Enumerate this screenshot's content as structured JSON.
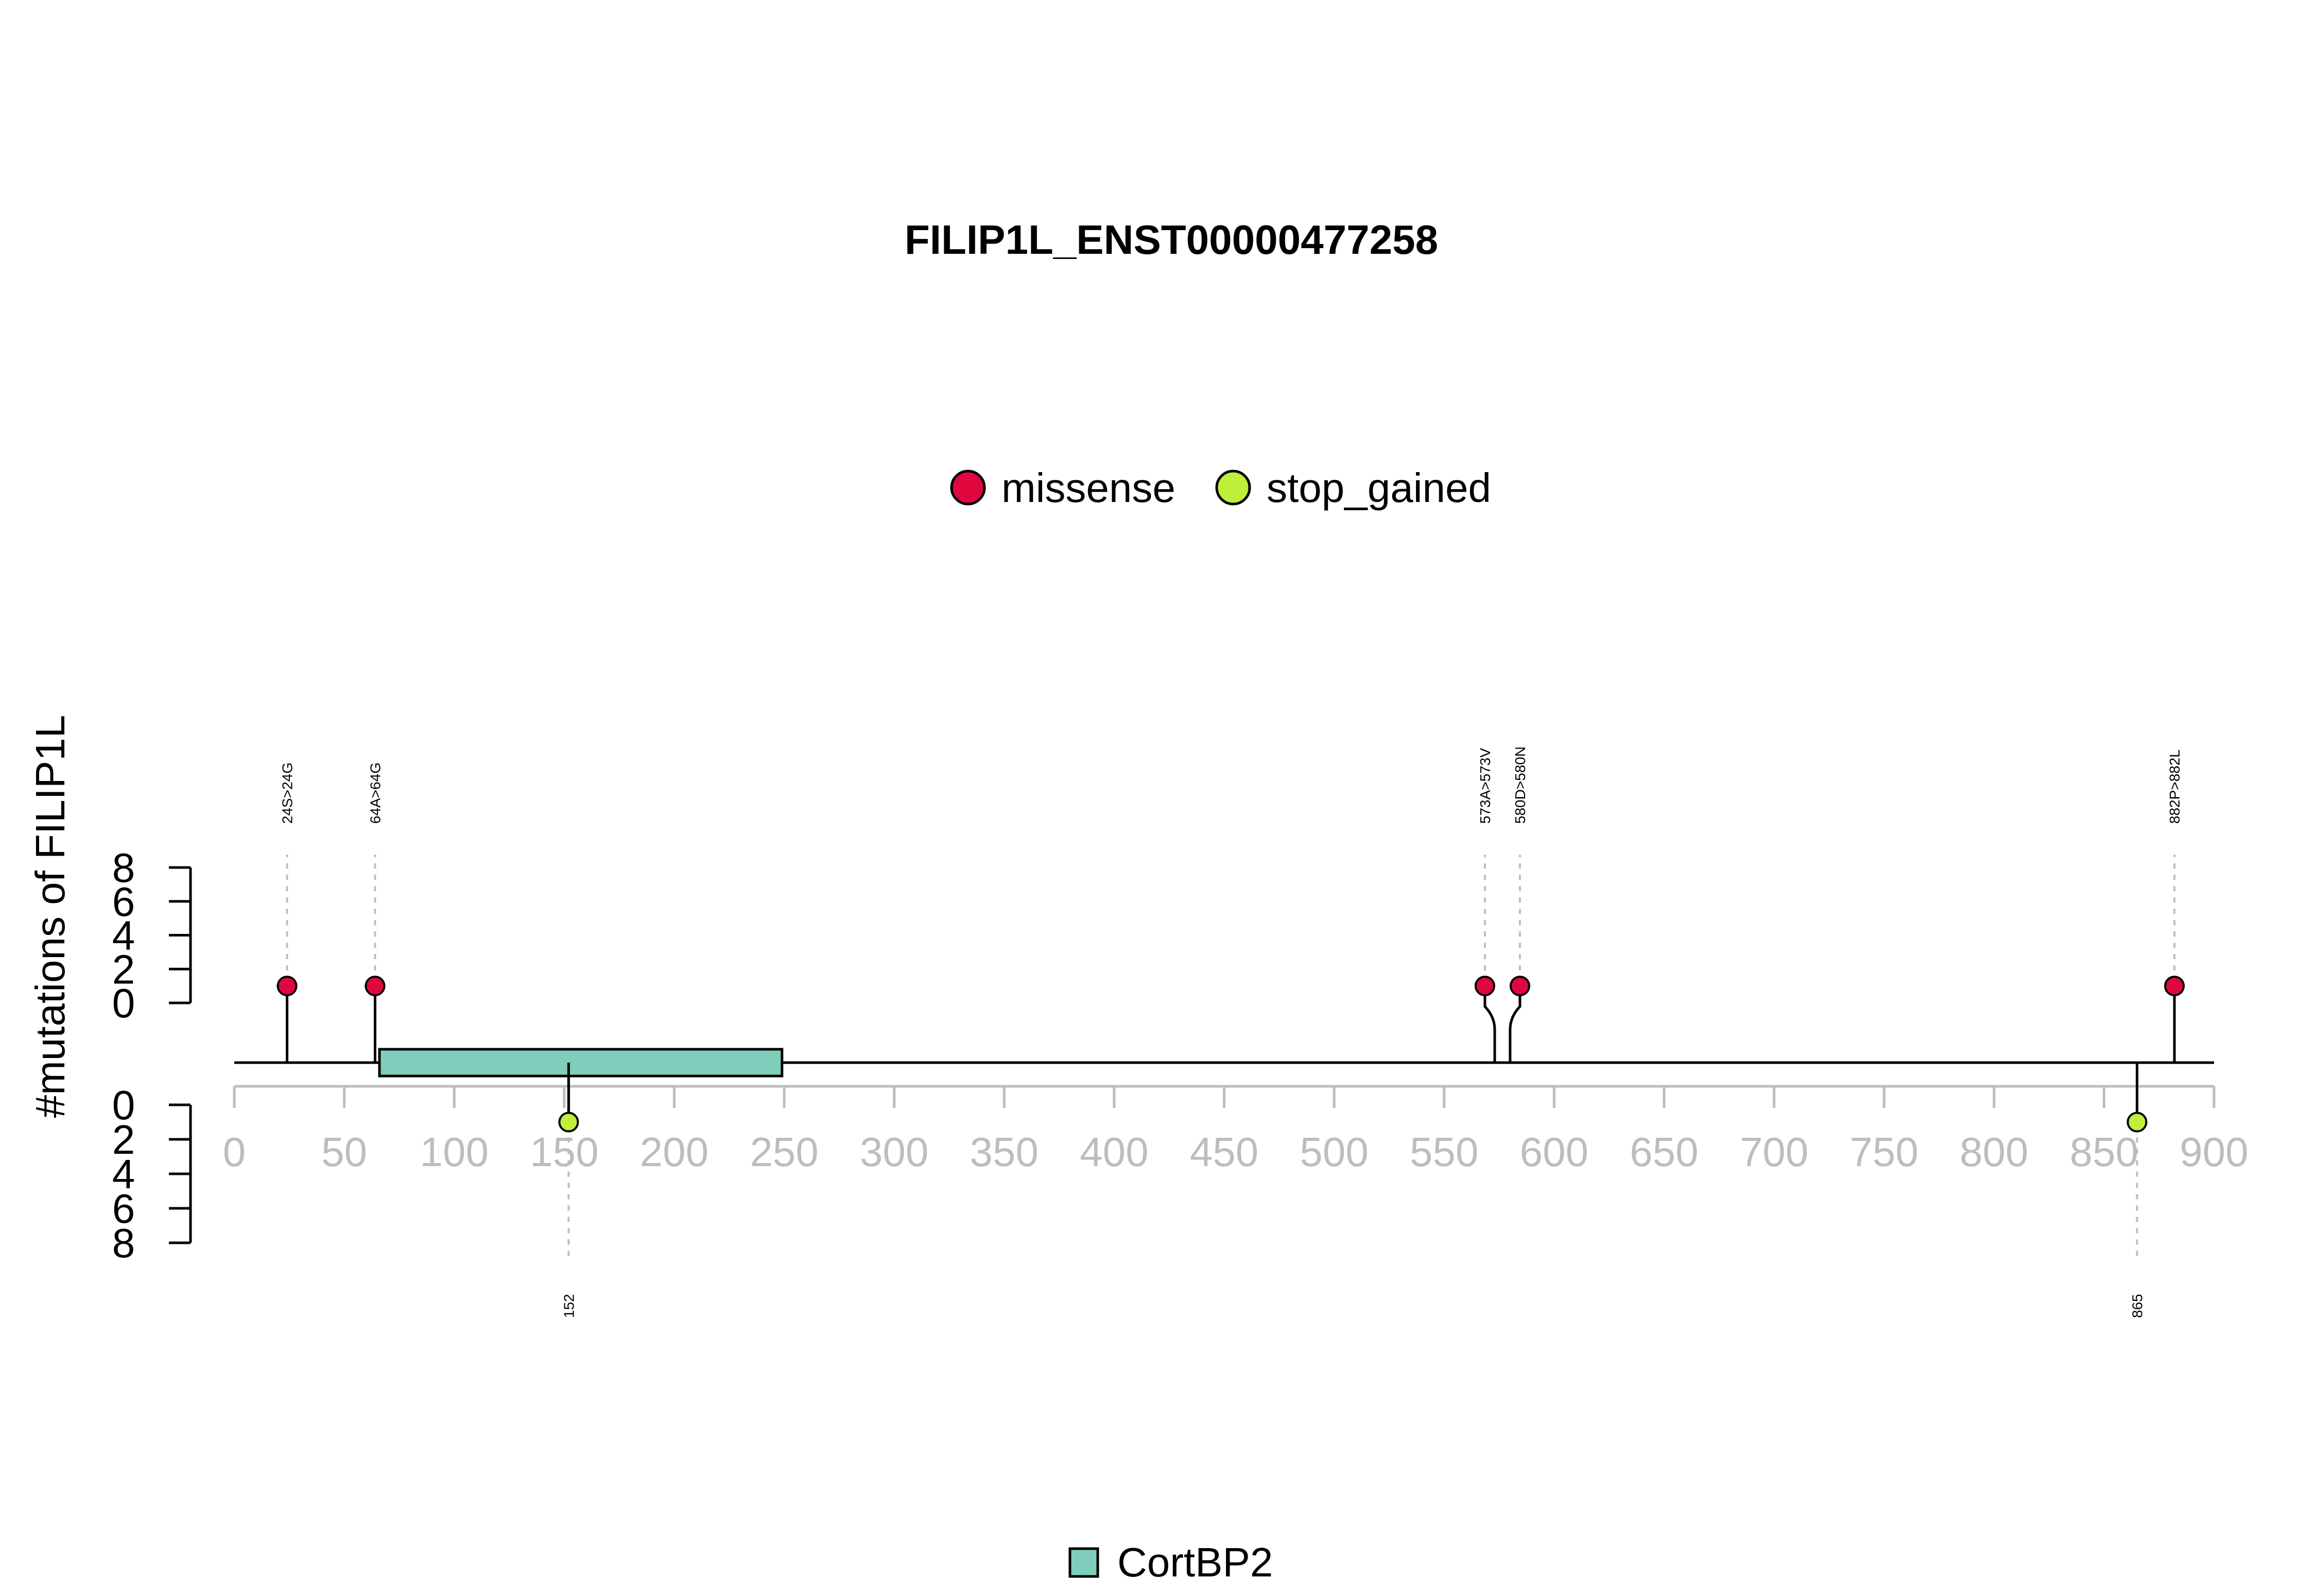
{
  "chart_data": {
    "type": "lollipop",
    "title": "FILIP1L_ENST00000477258",
    "ylabel": "#mutations of FILIP1L",
    "xlim": [
      0,
      900
    ],
    "x_ticks": [
      0,
      50,
      100,
      150,
      200,
      250,
      300,
      350,
      400,
      450,
      500,
      550,
      600,
      650,
      700,
      750,
      800,
      850,
      900
    ],
    "y_ticks": [
      0,
      2,
      4,
      6,
      8
    ],
    "ylim_up": [
      0,
      8
    ],
    "ylim_down": [
      0,
      8
    ],
    "legend": {
      "position": "top-center",
      "items": [
        {
          "label": "missense",
          "color": "#E0073F"
        },
        {
          "label": "stop_gained",
          "color": "#BDEF3B"
        }
      ]
    },
    "domains": [
      {
        "name": "CortBP2",
        "start": 66,
        "end": 249,
        "color": "#7FCDBB"
      }
    ],
    "mutations": [
      {
        "position": 24,
        "label": "24S>24G",
        "type": "missense",
        "count": 1,
        "side": "up"
      },
      {
        "position": 64,
        "label": "64A>64G",
        "type": "missense",
        "count": 1,
        "side": "up"
      },
      {
        "position": 573,
        "label": "573A>573V",
        "type": "missense",
        "count": 1,
        "side": "up"
      },
      {
        "position": 580,
        "label": "580D>580N",
        "type": "missense",
        "count": 1,
        "side": "up"
      },
      {
        "position": 882,
        "label": "882P>882L",
        "type": "missense",
        "count": 1,
        "side": "up"
      },
      {
        "position": 152,
        "label": "152",
        "type": "stop_gained",
        "count": 1,
        "side": "down"
      },
      {
        "position": 865,
        "label": "865",
        "type": "stop_gained",
        "count": 1,
        "side": "down"
      }
    ]
  }
}
